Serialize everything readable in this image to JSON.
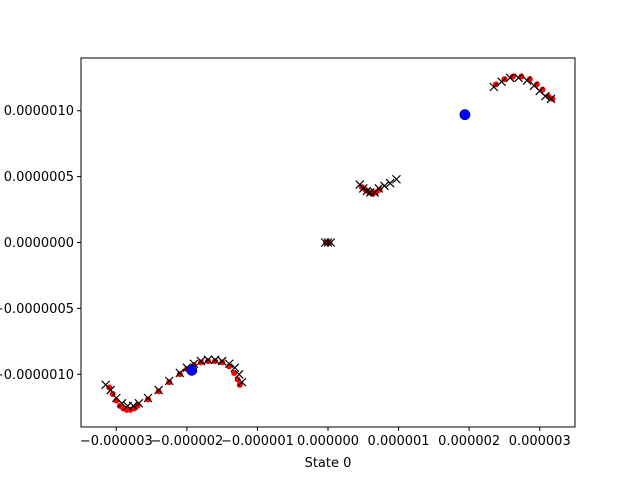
{
  "chart_data": {
    "type": "scatter",
    "title": "",
    "xlabel": "State 0",
    "ylabel": "",
    "xlim": [
      -3.5e-06,
      3.5e-06
    ],
    "ylim": [
      -1.4e-06,
      1.4e-06
    ],
    "xticks": [
      -3e-06,
      -2e-06,
      -1e-06,
      0.0,
      1e-06,
      2e-06,
      3e-06
    ],
    "xtick_labels": [
      "−0.000003",
      "−0.000002",
      "−0.000001",
      "0.000000",
      "0.000001",
      "0.000002",
      "0.000003"
    ],
    "yticks": [
      -1e-06,
      -5e-07,
      0.0,
      5e-07,
      1e-06
    ],
    "ytick_labels": [
      "−0.0000010",
      "−0.0000005",
      "0.0000000",
      "0.0000005",
      "0.0000010"
    ],
    "grid": false,
    "legend": null,
    "colors": {
      "red_dots": "#ff0000",
      "black_crosses": "#000000",
      "blue_markers": "#0000ff"
    },
    "series": [
      {
        "marker": "dot",
        "color": "#ff0000",
        "points": [
          [
            -3.1e-06,
            -1.1e-06
          ],
          [
            -3.05e-06,
            -1.15e-06
          ],
          [
            -3e-06,
            -1.2e-06
          ],
          [
            -2.95e-06,
            -1.24e-06
          ],
          [
            -2.9e-06,
            -1.26e-06
          ],
          [
            -2.85e-06,
            -1.27e-06
          ],
          [
            -2.8e-06,
            -1.27e-06
          ],
          [
            -2.75e-06,
            -1.26e-06
          ],
          [
            -2.7e-06,
            -1.24e-06
          ],
          [
            -2.55e-06,
            -1.19e-06
          ],
          [
            -2.4e-06,
            -1.13e-06
          ],
          [
            -2.25e-06,
            -1.06e-06
          ],
          [
            -2.1e-06,
            -1e-06
          ],
          [
            -2e-06,
            -9.6e-07
          ],
          [
            -1.9e-06,
            -9.3e-07
          ],
          [
            -1.8e-06,
            -9.1e-07
          ],
          [
            -1.7e-06,
            -9e-07
          ],
          [
            -1.6e-06,
            -9e-07
          ],
          [
            -1.5e-06,
            -9.1e-07
          ],
          [
            -1.4e-06,
            -9.4e-07
          ],
          [
            -1.33e-06,
            -9.9e-07
          ],
          [
            -1.28e-06,
            -1.04e-06
          ],
          [
            -1.25e-06,
            -1.08e-06
          ],
          [
            -3e-08,
            -0.0
          ],
          [
            2e-08,
            -0.0
          ],
          [
            4.8e-07,
            4.2e-07
          ],
          [
            5.3e-07,
            4e-07
          ],
          [
            5.8e-07,
            3.8e-07
          ],
          [
            6.3e-07,
            3.7e-07
          ],
          [
            6.8e-07,
            3.8e-07
          ],
          [
            7.3e-07,
            4e-07
          ],
          [
            2.38e-06,
            1.2e-06
          ],
          [
            2.5e-06,
            1.24e-06
          ],
          [
            2.62e-06,
            1.26e-06
          ],
          [
            2.74e-06,
            1.26e-06
          ],
          [
            2.86e-06,
            1.24e-06
          ],
          [
            2.96e-06,
            1.2e-06
          ],
          [
            3.04e-06,
            1.16e-06
          ],
          [
            3.12e-06,
            1.11e-06
          ],
          [
            3.18e-06,
            1.09e-06
          ]
        ]
      },
      {
        "marker": "x",
        "color": "#000000",
        "points": [
          [
            -3.15e-06,
            -1.08e-06
          ],
          [
            -3.08e-06,
            -1.12e-06
          ],
          [
            -3e-06,
            -1.18e-06
          ],
          [
            -2.92e-06,
            -1.22e-06
          ],
          [
            -2.84e-06,
            -1.24e-06
          ],
          [
            -2.76e-06,
            -1.24e-06
          ],
          [
            -2.68e-06,
            -1.22e-06
          ],
          [
            -2.55e-06,
            -1.18e-06
          ],
          [
            -2.4e-06,
            -1.12e-06
          ],
          [
            -2.25e-06,
            -1.05e-06
          ],
          [
            -2.1e-06,
            -9.9e-07
          ],
          [
            -2e-06,
            -9.5e-07
          ],
          [
            -1.9e-06,
            -9.2e-07
          ],
          [
            -1.8e-06,
            -9e-07
          ],
          [
            -1.7e-06,
            -8.9e-07
          ],
          [
            -1.6e-06,
            -8.9e-07
          ],
          [
            -1.5e-06,
            -9e-07
          ],
          [
            -1.4e-06,
            -9.2e-07
          ],
          [
            -1.32e-06,
            -9.5e-07
          ],
          [
            -1.26e-06,
            -1e-06
          ],
          [
            -1.22e-06,
            -1.06e-06
          ],
          [
            -4e-08,
            0.0
          ],
          [
            0.0,
            0.0
          ],
          [
            4e-08,
            0.0
          ],
          [
            4.5e-07,
            4.4e-07
          ],
          [
            5e-07,
            4.1e-07
          ],
          [
            5.5e-07,
            3.9e-07
          ],
          [
            6e-07,
            3.8e-07
          ],
          [
            6.6e-07,
            3.8e-07
          ],
          [
            7.2e-07,
            4.1e-07
          ],
          [
            8e-07,
            4.3e-07
          ],
          [
            8.8e-07,
            4.5e-07
          ],
          [
            9.7e-07,
            4.8e-07
          ],
          [
            2.35e-06,
            1.18e-06
          ],
          [
            2.46e-06,
            1.22e-06
          ],
          [
            2.58e-06,
            1.25e-06
          ],
          [
            2.7e-06,
            1.25e-06
          ],
          [
            2.82e-06,
            1.23e-06
          ],
          [
            2.92e-06,
            1.19e-06
          ],
          [
            3e-06,
            1.15e-06
          ],
          [
            3.08e-06,
            1.11e-06
          ],
          [
            3.16e-06,
            1.09e-06
          ]
        ]
      },
      {
        "marker": "circle",
        "color": "#0000ff",
        "points": [
          [
            -1.93e-06,
            -9.7e-07
          ],
          [
            1.94e-06,
            9.7e-07
          ]
        ]
      }
    ]
  }
}
